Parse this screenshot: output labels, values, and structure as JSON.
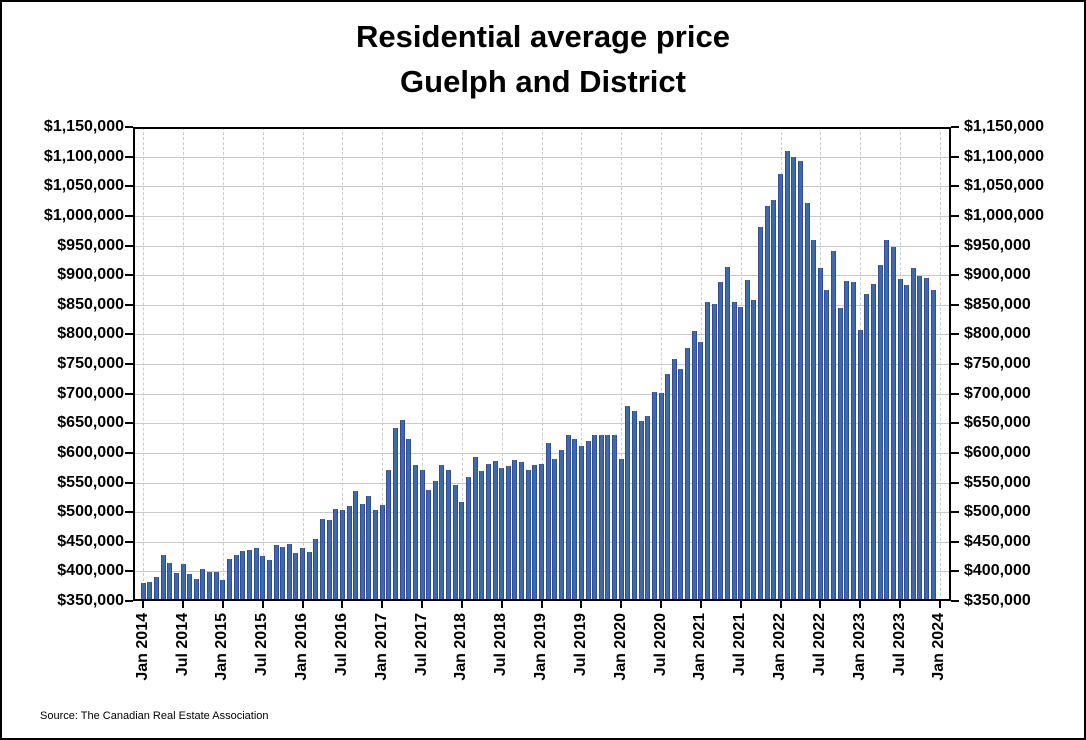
{
  "figure": {
    "title_line1": "Residential average price",
    "title_line2": "Guelph and District",
    "source": "Source: The Canadian Real Estate Association"
  },
  "chart_data": {
    "type": "bar",
    "title": "Residential average price Guelph and District",
    "xlabel": "",
    "ylabel": "",
    "legend": "none",
    "grid": "horizontal solid gray lines every $50,000; vertical dashed gray lines at each 6-month tick",
    "ylim": [
      350000,
      1150000
    ],
    "y_tick_step": 50000,
    "y_tick_labels": [
      "$350,000",
      "$400,000",
      "$450,000",
      "$500,000",
      "$550,000",
      "$600,000",
      "$650,000",
      "$700,000",
      "$750,000",
      "$800,000",
      "$850,000",
      "$900,000",
      "$950,000",
      "$1,000,000",
      "$1,050,000",
      "$1,100,000",
      "$1,150,000"
    ],
    "y_axis_sides": "both",
    "x_tick_labels": [
      "Jan 2014",
      "Jul 2014",
      "Jan 2015",
      "Jul 2015",
      "Jan 2016",
      "Jul 2016",
      "Jan 2017",
      "Jul 2017",
      "Jan 2018",
      "Jul 2018",
      "Jan 2019",
      "Jul 2019",
      "Jan 2020",
      "Jul 2020",
      "Jan 2021",
      "Jul 2021",
      "Jan 2022",
      "Jul 2022",
      "Jan 2023",
      "Jul 2023",
      "Jan 2024"
    ],
    "bar_color": "#4168af",
    "bar_edge_color": "#2e5090",
    "x": [
      "Jan 2014",
      "Feb 2014",
      "Mar 2014",
      "Apr 2014",
      "May 2014",
      "Jun 2014",
      "Jul 2014",
      "Aug 2014",
      "Sep 2014",
      "Oct 2014",
      "Nov 2014",
      "Dec 2014",
      "Jan 2015",
      "Feb 2015",
      "Mar 2015",
      "Apr 2015",
      "May 2015",
      "Jun 2015",
      "Jul 2015",
      "Aug 2015",
      "Sep 2015",
      "Oct 2015",
      "Nov 2015",
      "Dec 2015",
      "Jan 2016",
      "Feb 2016",
      "Mar 2016",
      "Apr 2016",
      "May 2016",
      "Jun 2016",
      "Jul 2016",
      "Aug 2016",
      "Sep 2016",
      "Oct 2016",
      "Nov 2016",
      "Dec 2016",
      "Jan 2017",
      "Feb 2017",
      "Mar 2017",
      "Apr 2017",
      "May 2017",
      "Jun 2017",
      "Jul 2017",
      "Aug 2017",
      "Sep 2017",
      "Oct 2017",
      "Nov 2017",
      "Dec 2017",
      "Jan 2018",
      "Feb 2018",
      "Mar 2018",
      "Apr 2018",
      "May 2018",
      "Jun 2018",
      "Jul 2018",
      "Aug 2018",
      "Sep 2018",
      "Oct 2018",
      "Nov 2018",
      "Dec 2018",
      "Jan 2019",
      "Feb 2019",
      "Mar 2019",
      "Apr 2019",
      "May 2019",
      "Jun 2019",
      "Jul 2019",
      "Aug 2019",
      "Sep 2019",
      "Oct 2019",
      "Nov 2019",
      "Dec 2019",
      "Jan 2020",
      "Feb 2020",
      "Mar 2020",
      "Apr 2020",
      "May 2020",
      "Jun 2020",
      "Jul 2020",
      "Aug 2020",
      "Sep 2020",
      "Oct 2020",
      "Nov 2020",
      "Dec 2020",
      "Jan 2021",
      "Feb 2021",
      "Mar 2021",
      "Apr 2021",
      "May 2021",
      "Jun 2021",
      "Jul 2021",
      "Aug 2021",
      "Sep 2021",
      "Oct 2021",
      "Nov 2021",
      "Dec 2021",
      "Jan 2022",
      "Feb 2022",
      "Mar 2022",
      "Apr 2022",
      "May 2022",
      "Jun 2022",
      "Jul 2022",
      "Aug 2022",
      "Sep 2022",
      "Oct 2022",
      "Nov 2022",
      "Dec 2022",
      "Jan 2023",
      "Feb 2023",
      "Mar 2023",
      "Apr 2023",
      "May 2023",
      "Jun 2023",
      "Jul 2023",
      "Aug 2023",
      "Sep 2023",
      "Oct 2023",
      "Nov 2023",
      "Dec 2023"
    ],
    "values": [
      381000,
      382000,
      390000,
      428000,
      414000,
      398000,
      413000,
      396000,
      388000,
      404000,
      399000,
      399000,
      386000,
      421000,
      428000,
      434000,
      437000,
      439000,
      426000,
      419000,
      445000,
      441000,
      446000,
      431000,
      439000,
      433000,
      454000,
      488000,
      487000,
      505000,
      504000,
      511000,
      535000,
      514000,
      527000,
      504000,
      512000,
      572000,
      642000,
      655000,
      624000,
      579000,
      572000,
      537000,
      552000,
      579000,
      572000,
      546000,
      518000,
      560000,
      593000,
      570000,
      582000,
      587000,
      575000,
      578000,
      588000,
      585000,
      571000,
      580000,
      582000,
      616000,
      590000,
      605000,
      630000,
      624000,
      612000,
      620000,
      631000,
      631000,
      630000,
      630000,
      589000,
      680000,
      670000,
      654000,
      663000,
      703000,
      701000,
      733000,
      758000,
      742000,
      777000,
      805000,
      787000,
      855000,
      852000,
      889000,
      914000,
      855000,
      847000,
      892000,
      858000,
      981000,
      1017000,
      1027000,
      1071000,
      1110000,
      1100000,
      1093000,
      1021000,
      960000,
      912000,
      875000,
      940000,
      845000,
      890000,
      888000,
      807000,
      868000,
      885000,
      918000,
      960000,
      948000,
      894000,
      884000,
      912000,
      899000,
      896000,
      875000
    ],
    "source": "Source: The Canadian Real Estate Association"
  }
}
